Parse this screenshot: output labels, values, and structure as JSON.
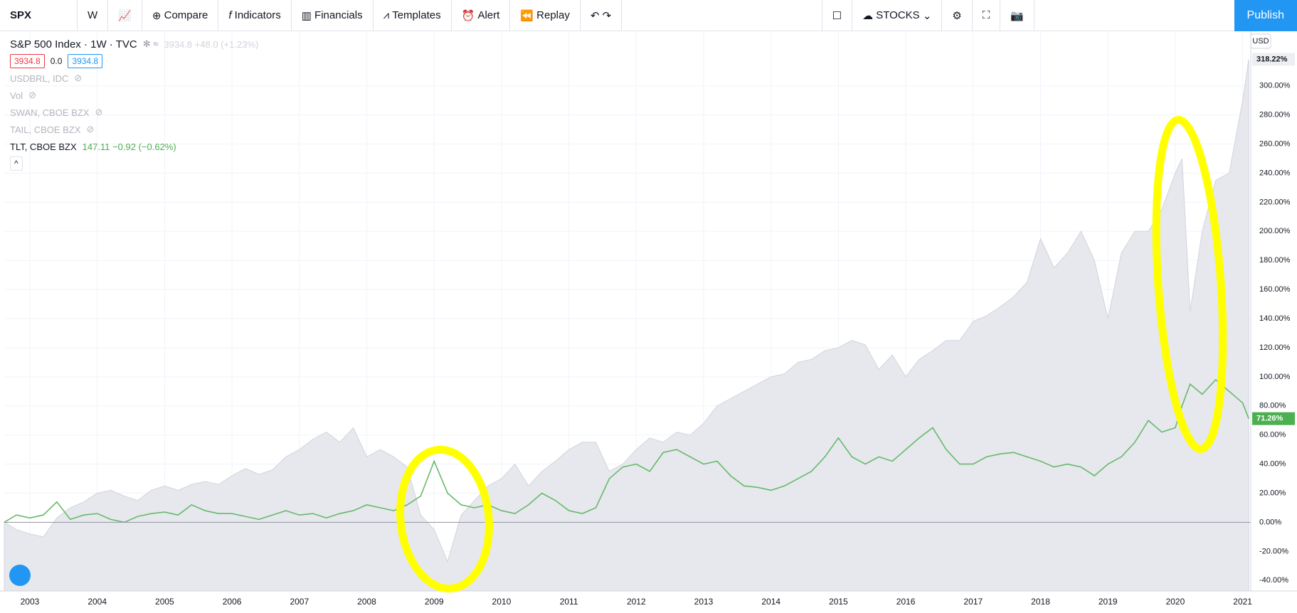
{
  "toolbar": {
    "symbol": "SPX",
    "interval": "W",
    "items": [
      "Compare",
      "Indicators",
      "Financials",
      "Templates",
      "Alert",
      "Replay"
    ],
    "layout": "STOCKS",
    "publish": "Publish"
  },
  "legend": {
    "main": "S&P 500 Index · 1W · TVC",
    "main_values": "3934.8 +48.0 (+1.23%)",
    "bid": "3934.8",
    "spread": "0.0",
    "ask": "3934.8",
    "hidden": [
      "USDBRL, IDC",
      "Vol",
      "SWAN, CBOE BZX",
      "TAIL, CBOE BZX"
    ],
    "tlt": "TLT, CBOE BZX",
    "tlt_values": "147.11 −0.92 (−0.62%)",
    "currency": "USD"
  },
  "chart_data": {
    "type": "area",
    "x": [
      2002.62,
      2002.8,
      2003,
      2003.2,
      2003.4,
      2003.6,
      2003.8,
      2004,
      2004.2,
      2004.4,
      2004.6,
      2004.8,
      2005,
      2005.2,
      2005.4,
      2005.6,
      2005.8,
      2006,
      2006.2,
      2006.4,
      2006.6,
      2006.8,
      2007,
      2007.2,
      2007.4,
      2007.6,
      2007.8,
      2008,
      2008.2,
      2008.4,
      2008.6,
      2008.8,
      2009,
      2009.2,
      2009.4,
      2009.6,
      2009.8,
      2010,
      2010.2,
      2010.4,
      2010.6,
      2010.8,
      2011,
      2011.2,
      2011.4,
      2011.6,
      2011.8,
      2012,
      2012.2,
      2012.4,
      2012.6,
      2012.8,
      2013,
      2013.2,
      2013.4,
      2013.6,
      2013.8,
      2014,
      2014.2,
      2014.4,
      2014.6,
      2014.8,
      2015,
      2015.2,
      2015.4,
      2015.6,
      2015.8,
      2016,
      2016.2,
      2016.4,
      2016.6,
      2016.8,
      2017,
      2017.2,
      2017.4,
      2017.6,
      2017.8,
      2018,
      2018.2,
      2018.4,
      2018.6,
      2018.8,
      2019,
      2019.2,
      2019.4,
      2019.6,
      2019.8,
      2020,
      2020.1,
      2020.22,
      2020.4,
      2020.6,
      2020.8,
      2021,
      2021.09
    ],
    "series": [
      {
        "name": "S&P 500 Index",
        "type": "area",
        "color": "#d1d4dc",
        "values": [
          0,
          -5,
          -8,
          -10,
          3,
          10,
          14,
          20,
          22,
          18,
          15,
          22,
          25,
          22,
          26,
          28,
          26,
          32,
          37,
          33,
          36,
          45,
          50,
          57,
          62,
          55,
          65,
          45,
          50,
          45,
          38,
          5,
          -5,
          -27,
          5,
          15,
          25,
          30,
          40,
          25,
          35,
          42,
          50,
          55,
          55,
          35,
          40,
          50,
          58,
          55,
          62,
          60,
          68,
          80,
          85,
          90,
          95,
          100,
          102,
          110,
          112,
          118,
          120,
          125,
          122,
          105,
          115,
          100,
          112,
          118,
          125,
          125,
          138,
          142,
          148,
          155,
          165,
          195,
          175,
          185,
          200,
          180,
          140,
          185,
          200,
          200,
          215,
          240,
          250,
          145,
          200,
          235,
          240,
          290,
          318.22
        ],
        "value_labels": [
          null,
          null,
          null,
          null,
          null,
          null,
          null,
          null,
          null,
          null,
          null,
          null,
          null,
          null,
          null,
          null,
          null,
          null,
          null,
          null,
          null,
          null,
          null,
          null,
          null,
          null,
          null,
          null,
          null,
          null,
          null,
          null,
          null,
          null,
          null,
          null,
          null,
          null,
          null,
          null,
          null,
          null,
          null,
          null,
          null,
          null,
          null,
          null,
          null,
          null,
          null,
          null,
          null,
          null,
          null,
          null,
          null,
          null,
          null,
          null,
          null,
          null,
          null,
          null,
          null,
          null,
          null,
          null,
          null,
          null,
          null,
          null,
          null,
          null,
          null,
          null,
          null,
          null,
          null,
          null,
          null,
          null,
          null,
          null,
          null,
          null,
          null,
          null,
          null,
          null,
          null,
          null,
          null,
          null,
          "318.22%"
        ]
      },
      {
        "name": "TLT, CBOE BZX",
        "type": "line",
        "color": "#66b96a",
        "values": [
          0,
          5,
          3,
          5,
          14,
          2,
          5,
          6,
          2,
          0,
          4,
          6,
          7,
          5,
          12,
          8,
          6,
          6,
          4,
          2,
          5,
          8,
          5,
          6,
          3,
          6,
          8,
          12,
          10,
          8,
          12,
          18,
          42,
          20,
          12,
          10,
          12,
          8,
          6,
          12,
          20,
          15,
          8,
          6,
          10,
          30,
          38,
          40,
          35,
          48,
          50,
          45,
          40,
          42,
          32,
          25,
          24,
          22,
          25,
          30,
          35,
          45,
          58,
          45,
          40,
          45,
          42,
          50,
          58,
          65,
          50,
          40,
          40,
          45,
          47,
          48,
          45,
          42,
          38,
          40,
          38,
          32,
          40,
          45,
          55,
          70,
          62,
          65,
          80,
          95,
          88,
          98,
          90,
          82,
          71.26
        ],
        "value_labels": [
          null,
          null,
          null,
          null,
          null,
          null,
          null,
          null,
          null,
          null,
          null,
          null,
          null,
          null,
          null,
          null,
          null,
          null,
          null,
          null,
          null,
          null,
          null,
          null,
          null,
          null,
          null,
          null,
          null,
          null,
          null,
          null,
          null,
          null,
          null,
          null,
          null,
          null,
          null,
          null,
          null,
          null,
          null,
          null,
          null,
          null,
          null,
          null,
          null,
          null,
          null,
          null,
          null,
          null,
          null,
          null,
          null,
          null,
          null,
          null,
          null,
          null,
          null,
          null,
          null,
          null,
          null,
          null,
          null,
          null,
          null,
          null,
          null,
          null,
          null,
          null,
          null,
          null,
          null,
          null,
          null,
          null,
          null,
          null,
          null,
          null,
          null,
          null,
          null,
          null,
          null,
          null,
          null,
          null,
          "71.26%"
        ]
      }
    ],
    "xlim": [
      2002.62,
      2021.12
    ],
    "xticks": [
      2003,
      2004,
      2005,
      2006,
      2007,
      2008,
      2009,
      2010,
      2011,
      2012,
      2013,
      2014,
      2015,
      2016,
      2017,
      2018,
      2019,
      2020,
      2021
    ],
    "ylim": [
      -47.2,
      337.5
    ],
    "yticks": [
      {
        "value": -40,
        "label": "-40.00%"
      },
      {
        "value": -20,
        "label": "-20.00%"
      },
      {
        "value": 0,
        "label": "0.00%"
      },
      {
        "value": 20,
        "label": "20.00%"
      },
      {
        "value": 40,
        "label": "40.00%"
      },
      {
        "value": 60,
        "label": "60.00%"
      },
      {
        "value": 80,
        "label": "80.00%"
      },
      {
        "value": 100,
        "label": "100.00%"
      },
      {
        "value": 120,
        "label": "120.00%"
      },
      {
        "value": 140,
        "label": "140.00%"
      },
      {
        "value": 160,
        "label": "160.00%"
      },
      {
        "value": 180,
        "label": "180.00%"
      },
      {
        "value": 200,
        "label": "200.00%"
      },
      {
        "value": 220,
        "label": "220.00%"
      },
      {
        "value": 240,
        "label": "240.00%"
      },
      {
        "value": 260,
        "label": "260.00%"
      },
      {
        "value": 280,
        "label": "280.00%"
      },
      {
        "value": 300,
        "label": "300.00%"
      }
    ],
    "grid": true
  }
}
